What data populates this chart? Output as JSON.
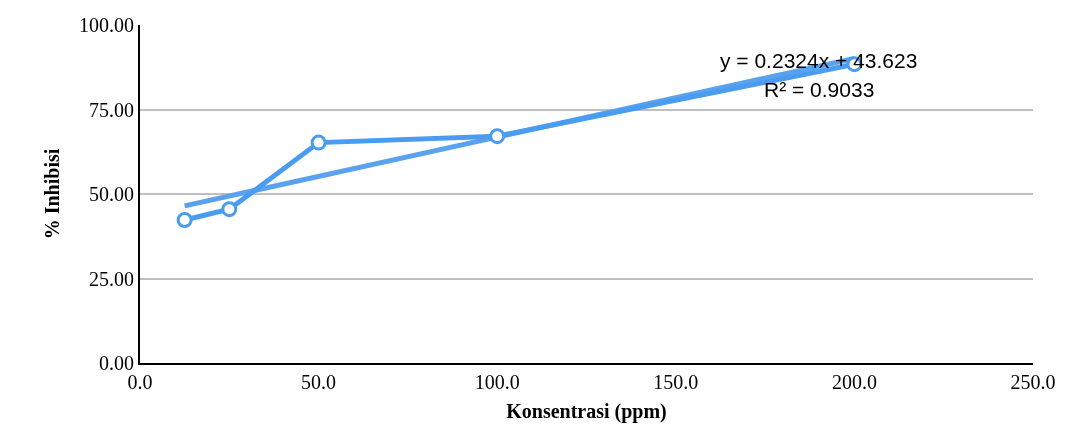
{
  "chart_data": {
    "type": "line",
    "xlabel": "Konsentrasi (ppm)",
    "ylabel": "% Inhibisi",
    "series": [
      {
        "color": "#4a9cf0",
        "marker": "circle",
        "x": [
          12.5,
          25,
          50,
          100,
          200
        ],
        "values": [
          42.3,
          45.5,
          65.2,
          67.1,
          88.4
        ]
      },
      {
        "color": "#5aa2ee",
        "marker": "none",
        "x": [
          12.5,
          200
        ],
        "values": [
          46.5,
          90.1
        ]
      }
    ],
    "annotations": [
      "y = 0.2324x + 43.623",
      "R² = 0.9033"
    ],
    "xlim": [
      0,
      250
    ],
    "xticks": [
      {
        "value": 0,
        "label": "0.0"
      },
      {
        "value": 50,
        "label": "50.0"
      },
      {
        "value": 100,
        "label": "100.0"
      },
      {
        "value": 150,
        "label": "150.0"
      },
      {
        "value": 200,
        "label": "200.0"
      },
      {
        "value": 250,
        "label": "250.0"
      }
    ],
    "ylim": [
      0,
      100
    ],
    "yticks": [
      {
        "value": 0,
        "label": "0.00"
      },
      {
        "value": 25,
        "label": "25.00"
      },
      {
        "value": 50,
        "label": "50.00"
      },
      {
        "value": 75,
        "label": "75.00"
      },
      {
        "value": 100,
        "label": "100.00"
      }
    ],
    "grid": "y"
  }
}
